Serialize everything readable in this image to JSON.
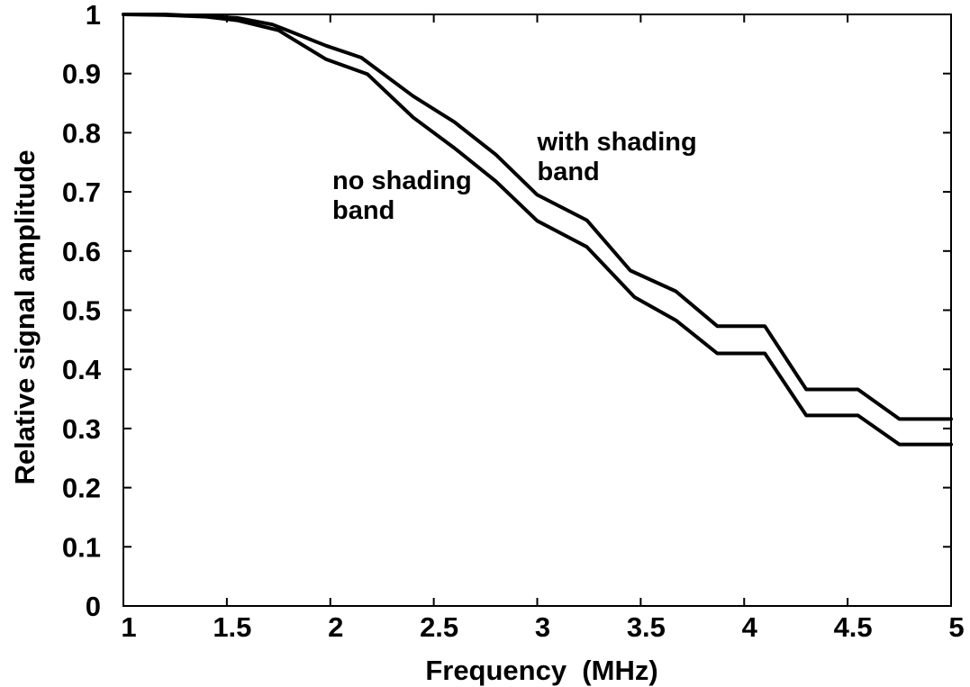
{
  "chart_data": {
    "type": "line",
    "title": "",
    "xlabel": "Frequency  (MHz)",
    "ylabel": "Relative signal amplitude",
    "xlim": [
      1,
      5
    ],
    "ylim": [
      0,
      1
    ],
    "x_ticks": [
      1,
      1.5,
      2,
      2.5,
      3,
      3.5,
      4,
      4.5,
      5
    ],
    "x_tick_labels": [
      "1",
      "1.5",
      "2",
      "2.5",
      "3",
      "3.5",
      "4",
      "4.5",
      "5"
    ],
    "y_ticks": [
      0,
      0.1,
      0.2,
      0.3,
      0.4,
      0.5,
      0.6,
      0.7,
      0.8,
      0.9,
      1
    ],
    "y_tick_labels": [
      "0",
      "0.1",
      "0.2",
      "0.3",
      "0.4",
      "0.5",
      "0.6",
      "0.7",
      "0.8",
      "0.9",
      "1"
    ],
    "grid": false,
    "legend": "none",
    "series": [
      {
        "name": "with shading band",
        "color": "#000000",
        "x": [
          1.0,
          1.2,
          1.4,
          1.55,
          1.72,
          1.8,
          1.98,
          2.15,
          2.4,
          2.6,
          2.8,
          3.0,
          3.24,
          3.45,
          3.67,
          3.87,
          4.1,
          4.3,
          4.55,
          4.75,
          5.0
        ],
        "y": [
          1.0,
          1.0,
          0.997,
          0.994,
          0.983,
          0.972,
          0.947,
          0.927,
          0.862,
          0.818,
          0.763,
          0.695,
          0.652,
          0.567,
          0.532,
          0.473,
          0.473,
          0.366,
          0.366,
          0.316,
          0.316
        ]
      },
      {
        "name": "no shading band",
        "color": "#000000",
        "x": [
          1.0,
          1.2,
          1.4,
          1.55,
          1.75,
          1.82,
          1.98,
          2.18,
          2.4,
          2.6,
          2.8,
          3.0,
          3.24,
          3.47,
          3.67,
          3.87,
          4.1,
          4.3,
          4.55,
          4.75,
          5.0
        ],
        "y": [
          1.0,
          0.999,
          0.996,
          0.99,
          0.973,
          0.958,
          0.924,
          0.899,
          0.826,
          0.774,
          0.718,
          0.651,
          0.607,
          0.522,
          0.483,
          0.427,
          0.427,
          0.322,
          0.322,
          0.273,
          0.273
        ]
      }
    ],
    "annotations": [
      {
        "lines": [
          "with shading",
          "band"
        ],
        "x": 3.0,
        "y": 0.77
      },
      {
        "lines": [
          "no shading",
          "band"
        ],
        "x": 2.01,
        "y": 0.705
      }
    ]
  }
}
